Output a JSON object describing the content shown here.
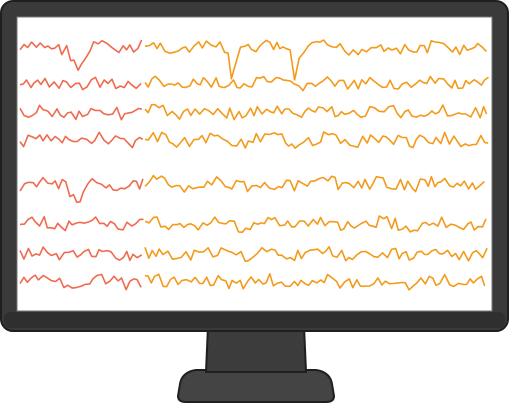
{
  "monitor": {
    "bezel_color": "#3a3a3a",
    "bezel_edge_color": "#1f1f1f",
    "stand_color": "#3c3c3c",
    "base_color": "#444444",
    "screen_color": "#ffffff"
  },
  "signals": {
    "icon": "eeg-waveform-icon",
    "channel_count": 8,
    "segments": [
      {
        "name": "earlier-segment",
        "color": "#ef6a4f"
      },
      {
        "name": "later-segment",
        "color": "#f39a1a"
      }
    ]
  }
}
